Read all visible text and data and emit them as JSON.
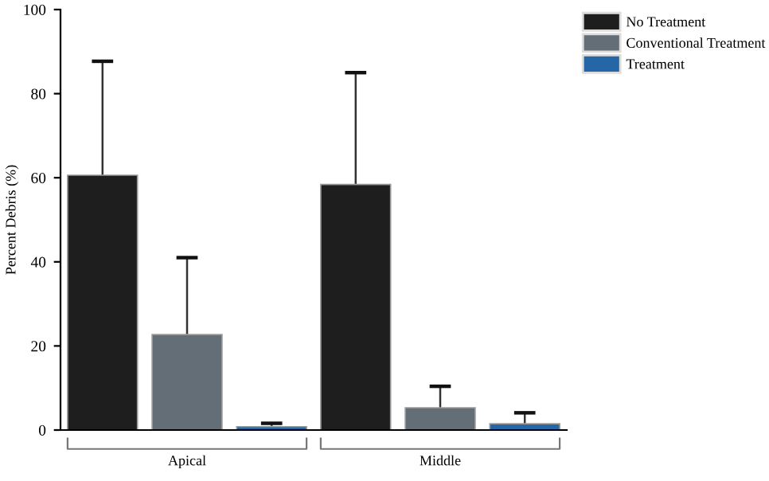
{
  "chart_data": {
    "type": "bar",
    "ylabel": "Percent Debris (%)",
    "categories": [
      "Apical",
      "Middle"
    ],
    "series": [
      {
        "name": "No Treatment",
        "color": "#1e1e1e",
        "values": [
          60.6,
          58.4
        ],
        "errors": [
          [
            60.6,
            87.7
          ],
          [
            58.4,
            85
          ]
        ]
      },
      {
        "name": "Conventional Treatment",
        "color": "#646e76",
        "values": [
          22.7,
          5.3
        ],
        "errors": [
          [
            22.7,
            41
          ],
          [
            5.3,
            10.4
          ]
        ]
      },
      {
        "name": "Treatment",
        "color": "#2466a6",
        "values": [
          0.8,
          1.5
        ],
        "errors": [
          [
            0.8,
            1.6
          ],
          [
            1.5,
            4.1
          ]
        ]
      }
    ],
    "ylim": [
      0,
      100
    ],
    "yticks": [
      0,
      20,
      40,
      60,
      80,
      100
    ],
    "grid": false,
    "legend": "top right"
  }
}
